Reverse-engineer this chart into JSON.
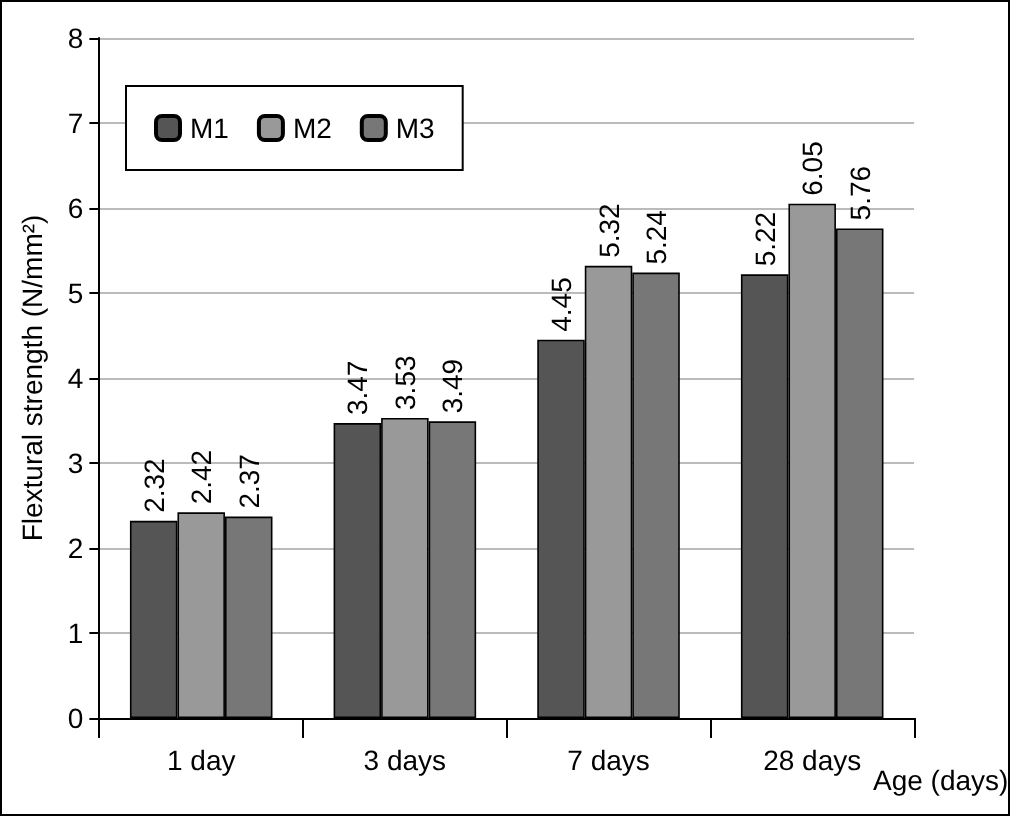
{
  "chart_data": {
    "type": "bar",
    "categories": [
      "1 day",
      "3 days",
      "7 days",
      "28 days"
    ],
    "series": [
      {
        "name": "M1",
        "color": "#555555",
        "values": [
          2.32,
          3.47,
          4.45,
          5.22
        ]
      },
      {
        "name": "M2",
        "color": "#999999",
        "values": [
          2.42,
          3.53,
          5.32,
          6.05
        ]
      },
      {
        "name": "M3",
        "color": "#777777",
        "values": [
          2.37,
          3.49,
          5.24,
          5.76
        ]
      }
    ],
    "ylabel": "Flextural strength (N/mm²)",
    "xlabel": "Age (days)",
    "ylim": [
      0,
      8
    ],
    "yticks": [
      0,
      1,
      2,
      3,
      4,
      5,
      6,
      7,
      8
    ],
    "grid": "y",
    "legend": "top left",
    "data_labels": true
  }
}
